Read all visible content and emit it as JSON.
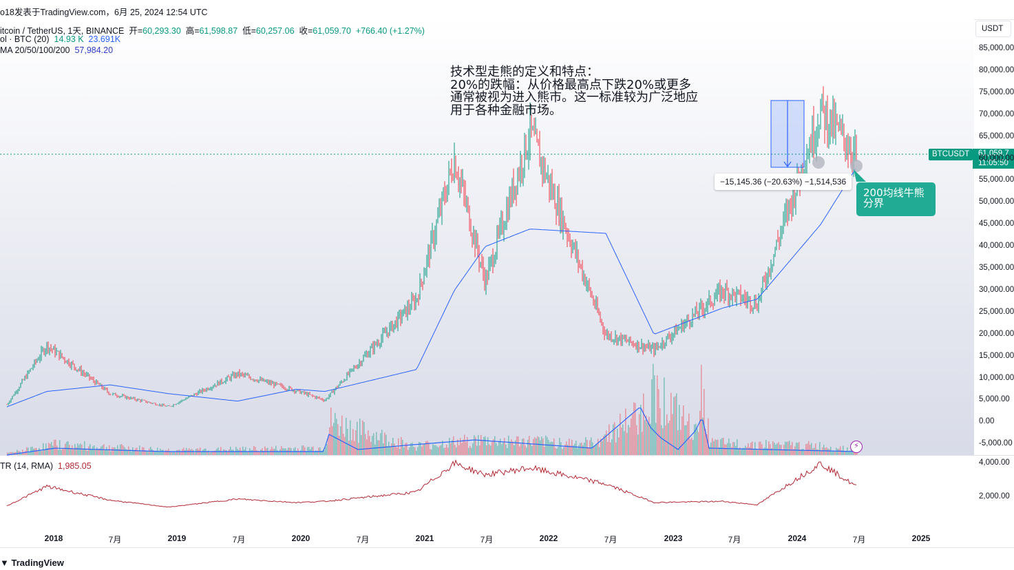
{
  "header": {
    "published": "o18发表于TradingView.com，6月 25, 2024 12:54 UTC"
  },
  "legend": {
    "symbol": "itcoin / TetherUS, 1天, BINANCE",
    "open_label": "开=",
    "open": "60,293.30",
    "high_label": "高=",
    "high": "61,598.87",
    "low_label": "低=",
    "low": "60,257.06",
    "close_label": "收=",
    "close": "61,059.70",
    "change": "+766.40 (+1.27%)",
    "vol_label": "ol · BTC (20)",
    "vol_value": "14.93 K",
    "vol_ma": "23.691K",
    "ma_label": "MA 20/50/100/200",
    "ma_value": "57,984.20",
    "atr_label": "TR (14, RMA)",
    "atr_value": "1,985.05"
  },
  "currency_button": "USDT",
  "price_scale": [
    "85,000.00",
    "80,000.00",
    "75,000.00",
    "70,000.00",
    "65,000.00",
    "60,000.00",
    "55,000.00",
    "50,000.00",
    "45,000.00",
    "40,000.00",
    "35,000.00",
    "30,000.00",
    "25,000.00",
    "20,000.00",
    "15,000.00",
    "10,000.00",
    "5,000.00",
    "0.00",
    "-5,000.00"
  ],
  "atr_scale": [
    "4,000.00",
    "2,000.00"
  ],
  "time_axis": [
    {
      "label": "2018",
      "bold": true
    },
    {
      "label": "7月",
      "bold": false
    },
    {
      "label": "2019",
      "bold": true
    },
    {
      "label": "7月",
      "bold": false
    },
    {
      "label": "2020",
      "bold": true
    },
    {
      "label": "7月",
      "bold": false
    },
    {
      "label": "2021",
      "bold": true
    },
    {
      "label": "7月",
      "bold": false
    },
    {
      "label": "2022",
      "bold": true
    },
    {
      "label": "7月",
      "bold": false
    },
    {
      "label": "2023",
      "bold": true
    },
    {
      "label": "7月",
      "bold": false
    },
    {
      "label": "2024",
      "bold": true
    },
    {
      "label": "7月",
      "bold": false
    },
    {
      "label": "2025",
      "bold": true
    }
  ],
  "annotation": {
    "line1": "技术型走熊的定义和特点：",
    "line2": "20%的跌幅：从价格最高点下跌20%或更多",
    "line3": "通常被视为进入熊市。这一标准较为广泛地应",
    "line4": "用于各种金融市场。"
  },
  "measure": "−15,145.36 (−20.63%) −1,514,536",
  "ma_note": {
    "line1": "200均线牛熊",
    "line2": "分界"
  },
  "last_price": {
    "symbol": "BTCUSDT",
    "price": "61,059.7",
    "countdown": "11:05:50"
  },
  "brand": "TradingView",
  "colors": {
    "up": "#089981",
    "down": "#f23645",
    "ma": "#2962ff",
    "atr": "#b22833",
    "accent": "#22ab94"
  },
  "chart_data": {
    "type": "line",
    "title": "itcoin / TetherUS, 1天, BINANCE",
    "ylim": [
      -5000,
      85000
    ],
    "grid": false,
    "x": [
      "2017-08",
      "2017-12",
      "2018-06",
      "2018-12",
      "2019-06",
      "2019-12",
      "2020-03",
      "2020-12",
      "2021-04",
      "2021-07",
      "2021-11",
      "2022-06",
      "2022-11",
      "2023-06",
      "2023-10",
      "2024-03",
      "2024-06"
    ],
    "series": [
      {
        "name": "close",
        "values": [
          4000,
          17500,
          6500,
          3500,
          11000,
          7200,
          5000,
          28000,
          60000,
          32000,
          66000,
          20000,
          16500,
          30000,
          27000,
          71000,
          61059.7
        ]
      },
      {
        "name": "MA 200",
        "values": [
          3500,
          7000,
          8500,
          6500,
          4800,
          7500,
          7000,
          12000,
          30000,
          40000,
          44000,
          43000,
          20000,
          26000,
          28000,
          45000,
          57984.2
        ]
      }
    ],
    "volume_ma": "23.691K",
    "atr": {
      "name": "ATR (14, RMA)",
      "values": [
        300,
        2000,
        800,
        200,
        900,
        600,
        700,
        1500,
        4000,
        3000,
        3600,
        2200,
        600,
        700,
        400,
        4000,
        1985.05
      ]
    },
    "annotations": [
      "−15,145.36 (−20.63%)",
      "200均线牛熊分界"
    ]
  }
}
